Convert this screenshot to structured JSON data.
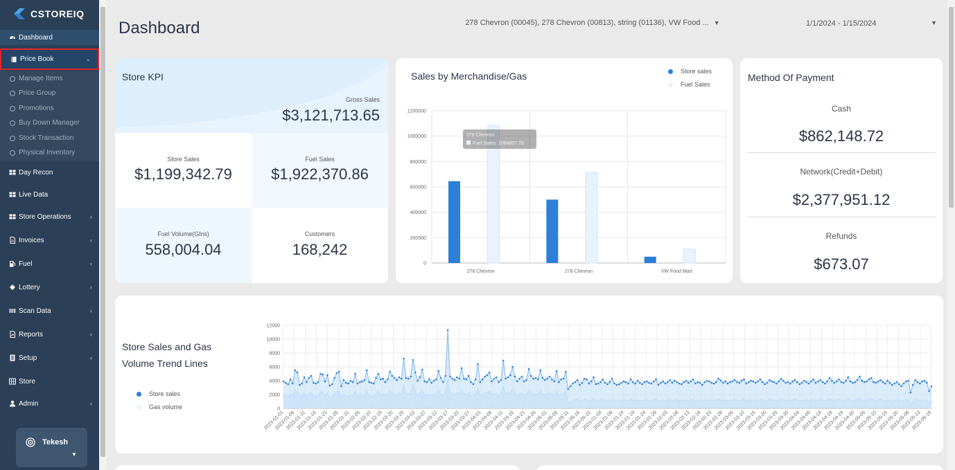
{
  "app": {
    "name": "CSTOREIQ"
  },
  "sidebar": {
    "items": [
      {
        "label": "Dashboard",
        "icon": "dashboard-icon"
      },
      {
        "label": "Price Book",
        "icon": "book-icon"
      },
      {
        "label": "Day Recon",
        "icon": "table-icon"
      },
      {
        "label": "Live Data",
        "icon": "table-icon"
      },
      {
        "label": "Store Operations",
        "icon": "table-icon"
      },
      {
        "label": "Invoices",
        "icon": "file-icon"
      },
      {
        "label": "Fuel",
        "icon": "fuel-icon"
      },
      {
        "label": "Lottery",
        "icon": "ticket-icon"
      },
      {
        "label": "Scan Data",
        "icon": "barcode-icon"
      },
      {
        "label": "Reports",
        "icon": "report-icon"
      },
      {
        "label": "Setup",
        "icon": "setup-icon"
      },
      {
        "label": "Store",
        "icon": "grid-icon"
      },
      {
        "label": "Admin",
        "icon": "user-icon"
      }
    ],
    "price_book_submenu": [
      "Manage Items",
      "Price Group",
      "Promotions",
      "Buy Down Manager",
      "Stock Transaction",
      "Physical Inventory"
    ],
    "user": {
      "name": "Tekesh"
    }
  },
  "header": {
    "title": "Dashboard",
    "store_filter": "278 Chevron (00045), 278 Chevron (00813), string (01136), VW Food ...",
    "date_range": "1/1/2024 - 1/15/2024"
  },
  "kpi": {
    "title": "Store KPI",
    "gross_sales_label": "Gross Sales",
    "gross_sales_value": "$3,121,713.65",
    "store_sales_label": "Store Sales",
    "store_sales_value": "$1,199,342.79",
    "fuel_sales_label": "Fuel Sales",
    "fuel_sales_value": "$1,922,370.86",
    "fuel_volume_label": "Fuel Volume(Glns)",
    "fuel_volume_value": "558,004.04",
    "customers_label": "Customers",
    "customers_value": "168,242"
  },
  "payment": {
    "title": "Method Of Payment",
    "cash_label": "Cash",
    "cash_value": "$862,148.72",
    "network_label": "Network(Credit+Debit)",
    "network_value": "$2,377,951.12",
    "refunds_label": "Refunds",
    "refunds_value": "$673.07"
  },
  "trend": {
    "title_line1": "Store Sales and Gas",
    "title_line2": "Volume Trend Lines",
    "legend_store": "Store sales",
    "legend_gas": "Gas volume"
  },
  "colors": {
    "sidebar": "#2b3f56",
    "store_sales": "#2e7fd8",
    "fuel_sales": "#e8f3fd",
    "highlight": "#e3262b"
  },
  "chart_data": [
    {
      "type": "bar",
      "title": "Sales by Merchandise/Gas",
      "categories": [
        "278 Chevron",
        "278 Chevron",
        "VW Food Mart"
      ],
      "series": [
        {
          "name": "Store sales",
          "values": [
            645000,
            500000,
            50000
          ]
        },
        {
          "name": "Fuel Sales",
          "values": [
            1084807.78,
            715000,
            110000
          ]
        }
      ],
      "yticks": [
        "0",
        "200000",
        "400000",
        "600000",
        "800000",
        "1000000",
        "1200000"
      ],
      "ylim": [
        0,
        1200000
      ],
      "legend": "top-right",
      "tooltip": {
        "title": "278 Chevron",
        "text": "Fuel Sales: 1084807.78"
      }
    },
    {
      "type": "line",
      "title": "Store Sales and Gas Volume Trend Lines",
      "ylim": [
        0,
        12000
      ],
      "yticks": [
        "0",
        "2000",
        "4000",
        "6000",
        "8000",
        "10000",
        "12000"
      ],
      "xlabels": [
        "2023-01-01",
        "2023-01-06",
        "2023-01-11",
        "2023-01-16",
        "2023-01-21",
        "2023-01-26",
        "2023-01-31",
        "2023-02-05",
        "2023-02-10",
        "2023-02-15",
        "2023-02-20",
        "2023-02-25",
        "2023-03-02",
        "2023-03-07",
        "2023-03-12",
        "2023-03-17",
        "2023-03-22",
        "2023-03-27",
        "2023-04-01",
        "2023-04-06",
        "2023-04-11",
        "2023-04-16",
        "2023-04-21",
        "2023-04-26",
        "2023-05-01",
        "2023-05-06",
        "2023-05-11",
        "2023-05-16",
        "2023-05-21",
        "2023-01-04",
        "2023-01-09",
        "2023-01-14",
        "2023-01-19",
        "2023-01-24",
        "2023-01-29",
        "2023-02-03",
        "2023-02-08",
        "2023-02-13",
        "2023-02-18",
        "2023-02-23",
        "2023-02-28",
        "2023-03-05",
        "2023-03-10",
        "2023-03-15",
        "2023-03-20",
        "2023-03-25",
        "2023-03-30",
        "2023-04-04",
        "2023-04-09",
        "2023-04-14",
        "2023-04-19",
        "2023-04-24",
        "2023-04-30",
        "2023-05-05",
        "2023-05-10",
        "2023-05-15",
        "2023-05-20",
        "2023-05-08",
        "2023-05-13",
        "2023-05-18"
      ],
      "series": [
        {
          "name": "Store sales",
          "values": [
            3900,
            3700,
            3500,
            4200,
            3600,
            5500,
            5200,
            3400,
            3600,
            4500,
            3800,
            4400,
            4700,
            3700,
            3600,
            3800,
            5000,
            4900,
            3900,
            4800,
            3300,
            3500,
            4400,
            5100,
            5300,
            3200,
            4100,
            3700,
            3600,
            4000,
            3800,
            5000,
            3600,
            3800,
            3900,
            4100,
            5500,
            3800,
            3700,
            3600,
            4400,
            5000,
            4200,
            4300,
            3800,
            4200,
            5300,
            4700,
            4400,
            4100,
            4500,
            4300,
            7200,
            4400,
            4300,
            4600,
            7000,
            5200,
            4000,
            4500,
            5600,
            3900,
            3800,
            4200,
            3700,
            4000,
            4200,
            5400,
            4400,
            3800,
            4700,
            11300,
            4600,
            4300,
            4100,
            4500,
            4300,
            5800,
            4300,
            4200,
            4700,
            3800,
            3500,
            4200,
            6400,
            3800,
            4200,
            4600,
            4800,
            5200,
            3900,
            4300,
            4500,
            3800,
            4100,
            6900,
            4300,
            4500,
            4800,
            6000,
            4600,
            3900,
            4300,
            4600,
            3900,
            4100,
            5700,
            4700,
            4300,
            4400,
            4200,
            5500,
            4400,
            4100,
            4300,
            4600,
            4200,
            3900,
            5400,
            3800,
            4200,
            4300,
            5300,
            2800,
            3200,
            3600,
            3800,
            4100,
            3400,
            3700,
            4300,
            4200,
            3600,
            3900,
            4500,
            3500,
            3600,
            3800,
            4200,
            3700,
            3500,
            3800,
            4300,
            3600,
            3400,
            3500,
            3700,
            3900,
            3800,
            3600,
            4200,
            3800,
            3600,
            4000,
            3700,
            3500,
            3800,
            3900,
            3700,
            3600,
            3900,
            4200,
            3400,
            3700,
            3900,
            3600,
            3800,
            4100,
            3700,
            4000,
            3800,
            3600,
            3500,
            3800,
            4000,
            3700,
            3900,
            4200,
            3600,
            3800,
            3700,
            3400,
            3800,
            4000,
            3900,
            3700,
            3600,
            3800,
            4300,
            4000,
            3700,
            3900,
            3600,
            3800,
            3900,
            4100,
            3800,
            3700,
            4000,
            4200,
            3600,
            3800,
            4000,
            3900,
            3700,
            3900,
            4200,
            3800,
            3500,
            3700,
            4100,
            3900,
            3800,
            3600,
            3900,
            4300,
            4000,
            3700,
            3800,
            3600,
            3900,
            4100,
            3800,
            3500,
            3700,
            4000,
            3800,
            3600,
            3900,
            4200,
            3700,
            3900,
            4100,
            3800,
            3600,
            3900,
            4400,
            4000,
            3700,
            3900,
            4200,
            3800,
            3700,
            4000,
            4500,
            3900,
            3700,
            3800,
            4100,
            4600,
            4000,
            3800,
            3900,
            4200,
            4400,
            3800,
            3700,
            3900,
            4100,
            3800,
            3600,
            4000,
            3700,
            3400,
            3600,
            3800,
            3500,
            3200,
            3600,
            3900,
            4000,
            2300,
            3400,
            4100,
            3800,
            3600,
            3900,
            4000,
            3700,
            2500,
            3200
          ]
        },
        {
          "name": "Gas volume",
          "values": [
            1900,
            1800,
            1700,
            2000,
            1800,
            2600,
            2400,
            1700,
            1800,
            2200,
            1800,
            2100,
            2300,
            1800,
            1700,
            1900,
            2400,
            2300,
            1900,
            2300,
            1600,
            1700,
            2100,
            2400,
            2500,
            1600,
            2000,
            1800,
            1700,
            1900,
            1800,
            2400,
            1700,
            1800,
            1900,
            2000,
            2600,
            1800,
            1800,
            1700,
            2100,
            2400,
            2000,
            2100,
            1800,
            2000,
            2500,
            2200,
            2100,
            2000,
            2200,
            2100,
            3400,
            2100,
            2100,
            2200,
            3300,
            2400,
            1900,
            2200,
            2600,
            1900,
            1800,
            2000,
            1800,
            1900,
            2000,
            2500,
            2100,
            1800,
            2200,
            4200,
            2200,
            2100,
            2000,
            2200,
            2100,
            2700,
            2100,
            2000,
            2200,
            1800,
            1700,
            2000,
            2900,
            1800,
            2000,
            2200,
            2300,
            2400,
            1900,
            2100,
            2200,
            1800,
            2000,
            3200,
            2100,
            2200,
            2300,
            2800,
            2200,
            1900,
            2100,
            2200,
            1900,
            2000,
            2700,
            2200,
            2100,
            2100,
            2000,
            2600,
            2100,
            2000,
            2100,
            2200,
            2000,
            1900,
            2500,
            1800,
            2000,
            2100,
            2500,
            700,
            900,
            1100,
            1200,
            1300,
            1000,
            1100,
            1300,
            1300,
            1100,
            1200,
            1400,
            1100,
            1100,
            1200,
            1300,
            1100,
            1100,
            1200,
            1300,
            1100,
            1000,
            1100,
            1100,
            1200,
            1200,
            1100,
            1300,
            1200,
            1100,
            1200,
            1100,
            1100,
            1200,
            1200,
            1100,
            1100,
            1200,
            1300,
            1000,
            1100,
            1200,
            1100,
            1200,
            1300,
            1100,
            1200,
            1200,
            1100,
            1100,
            1200,
            1200,
            1100,
            1200,
            1300,
            1100,
            1200,
            1100,
            1000,
            1200,
            1200,
            1200,
            1100,
            1100,
            1200,
            1300,
            1200,
            1100,
            1200,
            1100,
            1200,
            1200,
            1300,
            1200,
            1100,
            1200,
            1300,
            1100,
            1200,
            1200,
            1200,
            1100,
            1200,
            1300,
            1200,
            1100,
            1100,
            1300,
            1200,
            1200,
            1100,
            1200,
            1300,
            1200,
            1100,
            1200,
            1100,
            1200,
            1300,
            1200,
            1100,
            1100,
            1200,
            1200,
            1100,
            1200,
            1300,
            1100,
            1200,
            1300,
            1200,
            1100,
            1200,
            1300,
            1200,
            1100,
            1200,
            1300,
            1200,
            1100,
            1200,
            1400,
            1200,
            1100,
            1200,
            1300,
            1400,
            1200,
            1200,
            1200,
            1300,
            1300,
            1200,
            1100,
            1200,
            1300,
            1200,
            1100,
            1200,
            1100,
            1000,
            1100,
            1200,
            1100,
            1000,
            1100,
            1200,
            1200,
            500,
            1000,
            1300,
            1200,
            1100,
            1200,
            1200,
            1100,
            800,
            1000
          ]
        }
      ],
      "legend": "left"
    }
  ]
}
